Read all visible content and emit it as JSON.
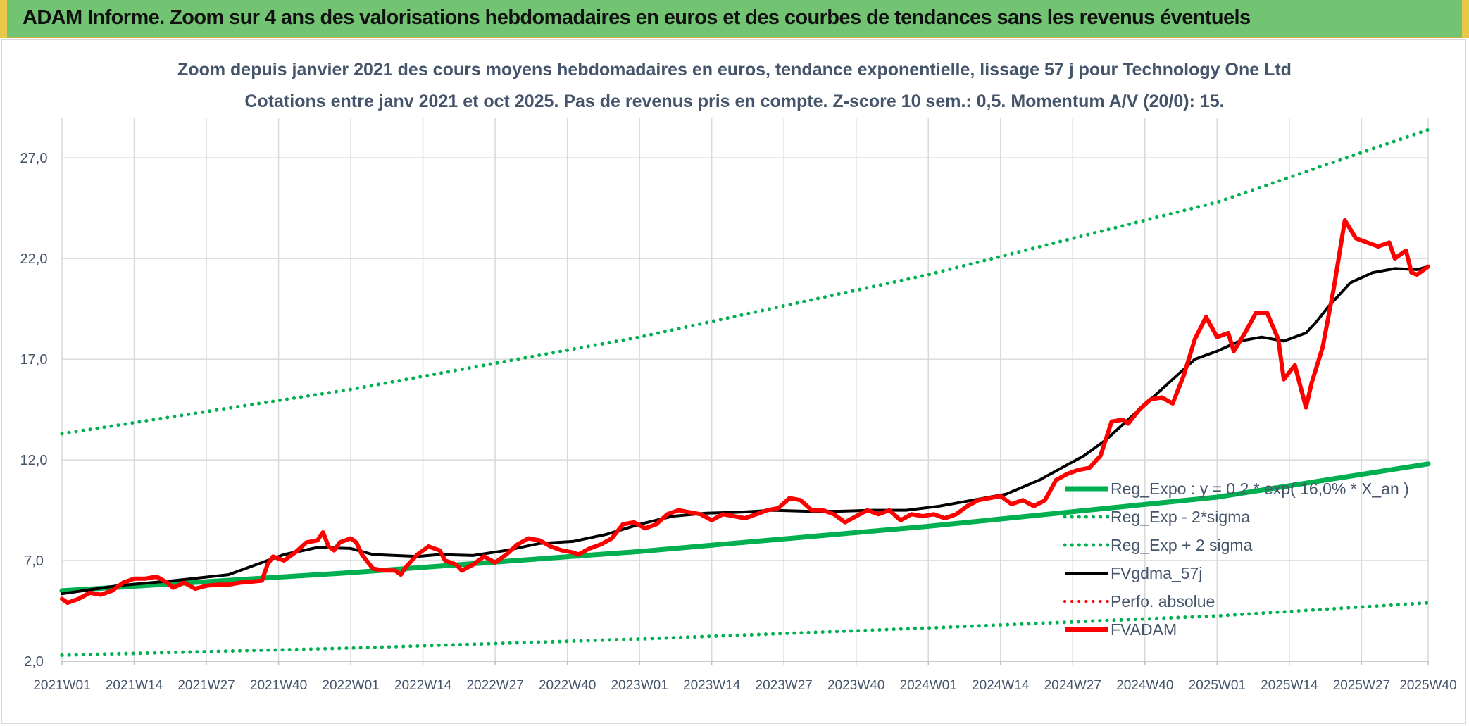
{
  "header": {
    "title": "ADAM Informe. Zoom sur 4 ans des valorisations hebdomadaires en euros et des courbes de tendances sans les revenus éventuels"
  },
  "chart_data": {
    "type": "line",
    "title": "Zoom depuis janvier 2021 des cours moyens hebdomadaires en euros, tendance exponentielle, lissage 57 j pour Technology One Ltd",
    "subtitle": "Cotations entre janv 2021 et oct 2025. Pas de revenus pris en compte. Z-score 10 sem.: 0,5. Momentum A/V (20/0): 15.",
    "xlabel": "",
    "ylabel": "",
    "ylim": [
      2.0,
      29.0
    ],
    "xlim": [
      0,
      246
    ],
    "yticks": [
      2.0,
      7.0,
      12.0,
      17.0,
      22.0,
      27.0
    ],
    "ytick_labels": [
      "2,0",
      "7,0",
      "12,0",
      "17,0",
      "22,0",
      "27,0"
    ],
    "xticks": [
      {
        "label": "2021W01",
        "x": 0
      },
      {
        "label": "2021W14",
        "x": 13
      },
      {
        "label": "2021W27",
        "x": 26
      },
      {
        "label": "2021W40",
        "x": 39
      },
      {
        "label": "2022W01",
        "x": 52
      },
      {
        "label": "2022W14",
        "x": 65
      },
      {
        "label": "2022W27",
        "x": 78
      },
      {
        "label": "2022W40",
        "x": 91
      },
      {
        "label": "2023W01",
        "x": 104
      },
      {
        "label": "2023W14",
        "x": 117
      },
      {
        "label": "2023W27",
        "x": 130
      },
      {
        "label": "2023W40",
        "x": 143
      },
      {
        "label": "2024W01",
        "x": 156
      },
      {
        "label": "2024W14",
        "x": 169
      },
      {
        "label": "2024W27",
        "x": 182
      },
      {
        "label": "2024W40",
        "x": 195
      },
      {
        "label": "2025W01",
        "x": 208
      },
      {
        "label": "2025W14",
        "x": 221
      },
      {
        "label": "2025W27",
        "x": 234
      },
      {
        "label": "2025W40",
        "x": 246
      }
    ],
    "grid": true,
    "legend_position": "bottom-right",
    "series": [
      {
        "name": "Reg_Expo : y = 0,2 * exp( 16,0% * X_an )",
        "color": "#00b050",
        "style": "solid",
        "width": 7,
        "points": [
          [
            0,
            5.5
          ],
          [
            52,
            6.4
          ],
          [
            104,
            7.45
          ],
          [
            156,
            8.7
          ],
          [
            208,
            10.15
          ],
          [
            246,
            11.8
          ]
        ]
      },
      {
        "name": "Reg_Exp - 2*sigma",
        "color": "#00b050",
        "style": "dotted",
        "width": 5,
        "points": [
          [
            0,
            2.3
          ],
          [
            52,
            2.65
          ],
          [
            104,
            3.1
          ],
          [
            156,
            3.65
          ],
          [
            208,
            4.25
          ],
          [
            246,
            4.9
          ]
        ]
      },
      {
        "name": "Reg_Exp + 2 sigma",
        "color": "#00b050",
        "style": "dotted",
        "width": 5,
        "points": [
          [
            0,
            13.3
          ],
          [
            52,
            15.5
          ],
          [
            104,
            18.1
          ],
          [
            156,
            21.2
          ],
          [
            208,
            24.8
          ],
          [
            246,
            28.4
          ]
        ]
      },
      {
        "name": "FVgdma_57j",
        "color": "#000000",
        "style": "solid",
        "width": 4,
        "points": [
          [
            0,
            5.35
          ],
          [
            10,
            5.75
          ],
          [
            20,
            6.0
          ],
          [
            30,
            6.3
          ],
          [
            40,
            7.3
          ],
          [
            46,
            7.65
          ],
          [
            52,
            7.6
          ],
          [
            56,
            7.3
          ],
          [
            64,
            7.2
          ],
          [
            68,
            7.3
          ],
          [
            74,
            7.25
          ],
          [
            80,
            7.5
          ],
          [
            86,
            7.85
          ],
          [
            92,
            7.95
          ],
          [
            98,
            8.3
          ],
          [
            104,
            8.8
          ],
          [
            110,
            9.2
          ],
          [
            116,
            9.35
          ],
          [
            122,
            9.4
          ],
          [
            128,
            9.5
          ],
          [
            134,
            9.45
          ],
          [
            140,
            9.45
          ],
          [
            146,
            9.5
          ],
          [
            152,
            9.5
          ],
          [
            158,
            9.7
          ],
          [
            164,
            10.0
          ],
          [
            170,
            10.3
          ],
          [
            176,
            11.0
          ],
          [
            180,
            11.6
          ],
          [
            184,
            12.2
          ],
          [
            188,
            13.0
          ],
          [
            192,
            14.0
          ],
          [
            196,
            15.0
          ],
          [
            200,
            16.0
          ],
          [
            204,
            17.0
          ],
          [
            208,
            17.4
          ],
          [
            212,
            17.9
          ],
          [
            216,
            18.1
          ],
          [
            220,
            17.9
          ],
          [
            224,
            18.3
          ],
          [
            226,
            18.9
          ],
          [
            228,
            19.6
          ],
          [
            232,
            20.8
          ],
          [
            236,
            21.3
          ],
          [
            240,
            21.5
          ],
          [
            244,
            21.45
          ],
          [
            246,
            21.6
          ]
        ]
      },
      {
        "name": "Perfo. absolue",
        "color": "#ff0000",
        "style": "dotted",
        "width": 4,
        "points": []
      },
      {
        "name": "FVADAM",
        "color": "#ff0000",
        "style": "solid",
        "width": 6,
        "points": [
          [
            0,
            5.1
          ],
          [
            1,
            4.9
          ],
          [
            3,
            5.1
          ],
          [
            5,
            5.4
          ],
          [
            7,
            5.3
          ],
          [
            9,
            5.5
          ],
          [
            11,
            5.9
          ],
          [
            13,
            6.1
          ],
          [
            15,
            6.1
          ],
          [
            17,
            6.2
          ],
          [
            19,
            5.9
          ],
          [
            20,
            5.65
          ],
          [
            22,
            5.9
          ],
          [
            24,
            5.6
          ],
          [
            26,
            5.75
          ],
          [
            28,
            5.8
          ],
          [
            30,
            5.8
          ],
          [
            32,
            5.9
          ],
          [
            34,
            5.95
          ],
          [
            36,
            6.0
          ],
          [
            37,
            6.8
          ],
          [
            38,
            7.2
          ],
          [
            40,
            7.0
          ],
          [
            42,
            7.4
          ],
          [
            44,
            7.9
          ],
          [
            46,
            8.0
          ],
          [
            47,
            8.4
          ],
          [
            48,
            7.7
          ],
          [
            49,
            7.5
          ],
          [
            50,
            7.9
          ],
          [
            52,
            8.1
          ],
          [
            53,
            7.9
          ],
          [
            54,
            7.3
          ],
          [
            56,
            6.6
          ],
          [
            58,
            6.5
          ],
          [
            60,
            6.5
          ],
          [
            61,
            6.3
          ],
          [
            62,
            6.7
          ],
          [
            64,
            7.3
          ],
          [
            66,
            7.7
          ],
          [
            68,
            7.5
          ],
          [
            69,
            7.0
          ],
          [
            71,
            6.8
          ],
          [
            72,
            6.5
          ],
          [
            74,
            6.8
          ],
          [
            76,
            7.2
          ],
          [
            78,
            6.9
          ],
          [
            80,
            7.3
          ],
          [
            82,
            7.8
          ],
          [
            84,
            8.1
          ],
          [
            86,
            8.0
          ],
          [
            88,
            7.7
          ],
          [
            90,
            7.5
          ],
          [
            92,
            7.4
          ],
          [
            93,
            7.3
          ],
          [
            95,
            7.6
          ],
          [
            97,
            7.8
          ],
          [
            99,
            8.1
          ],
          [
            101,
            8.8
          ],
          [
            103,
            8.9
          ],
          [
            105,
            8.6
          ],
          [
            107,
            8.8
          ],
          [
            109,
            9.3
          ],
          [
            111,
            9.5
          ],
          [
            113,
            9.4
          ],
          [
            115,
            9.3
          ],
          [
            117,
            9.0
          ],
          [
            119,
            9.3
          ],
          [
            121,
            9.2
          ],
          [
            123,
            9.1
          ],
          [
            125,
            9.3
          ],
          [
            127,
            9.5
          ],
          [
            129,
            9.6
          ],
          [
            131,
            10.1
          ],
          [
            133,
            10.0
          ],
          [
            135,
            9.5
          ],
          [
            137,
            9.5
          ],
          [
            139,
            9.3
          ],
          [
            141,
            8.9
          ],
          [
            143,
            9.2
          ],
          [
            145,
            9.5
          ],
          [
            147,
            9.3
          ],
          [
            149,
            9.5
          ],
          [
            151,
            9.0
          ],
          [
            153,
            9.3
          ],
          [
            155,
            9.2
          ],
          [
            157,
            9.3
          ],
          [
            159,
            9.1
          ],
          [
            161,
            9.3
          ],
          [
            163,
            9.7
          ],
          [
            165,
            10.0
          ],
          [
            167,
            10.1
          ],
          [
            169,
            10.2
          ],
          [
            171,
            9.8
          ],
          [
            173,
            10.0
          ],
          [
            175,
            9.7
          ],
          [
            177,
            10.0
          ],
          [
            179,
            11.0
          ],
          [
            181,
            11.3
          ],
          [
            183,
            11.5
          ],
          [
            185,
            11.6
          ],
          [
            187,
            12.2
          ],
          [
            189,
            13.9
          ],
          [
            191,
            14.0
          ],
          [
            192,
            13.8
          ],
          [
            194,
            14.5
          ],
          [
            196,
            15.0
          ],
          [
            198,
            15.1
          ],
          [
            200,
            14.8
          ],
          [
            202,
            16.2
          ],
          [
            204,
            18.0
          ],
          [
            206,
            19.1
          ],
          [
            208,
            18.1
          ],
          [
            210,
            18.3
          ],
          [
            211,
            17.4
          ],
          [
            213,
            18.3
          ],
          [
            215,
            19.3
          ],
          [
            217,
            19.3
          ],
          [
            219,
            18.0
          ],
          [
            220,
            16.0
          ],
          [
            222,
            16.7
          ],
          [
            224,
            14.6
          ],
          [
            225,
            15.8
          ],
          [
            227,
            17.6
          ],
          [
            229,
            20.5
          ],
          [
            231,
            23.9
          ],
          [
            233,
            23.0
          ],
          [
            235,
            22.8
          ],
          [
            237,
            22.6
          ],
          [
            239,
            22.8
          ],
          [
            240,
            22.0
          ],
          [
            242,
            22.4
          ],
          [
            243,
            21.3
          ],
          [
            244,
            21.2
          ],
          [
            245,
            21.4
          ],
          [
            246,
            21.6
          ]
        ]
      }
    ],
    "legend_order": [
      0,
      1,
      2,
      3,
      4,
      5
    ]
  }
}
